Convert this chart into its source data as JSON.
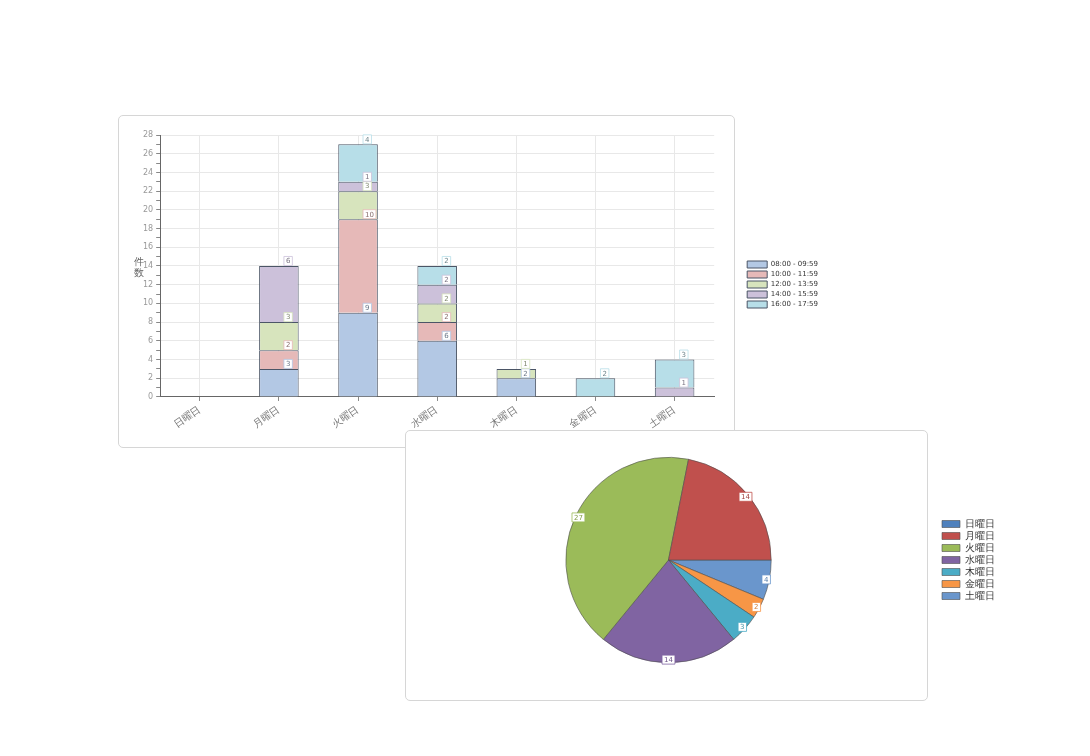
{
  "chart_data": [
    {
      "type": "bar",
      "ylabel": "件数",
      "categories": [
        "日曜日",
        "月曜日",
        "火曜日",
        "水曜日",
        "木曜日",
        "金曜日",
        "土曜日"
      ],
      "series": [
        {
          "name": "08:00 - 09:59",
          "color": "#b3c8e4",
          "values": [
            0,
            3,
            9,
            6,
            2,
            0,
            0
          ],
          "value_labels": [
            null,
            "3",
            "9",
            "6",
            "2",
            null,
            null
          ]
        },
        {
          "name": "10:00 - 11:59",
          "color": "#e6b9b8",
          "values": [
            0,
            2,
            10,
            2,
            0,
            0,
            0
          ],
          "value_labels": [
            null,
            "2",
            "10",
            "2",
            null,
            null,
            null
          ]
        },
        {
          "name": "12:00 - 13:59",
          "color": "#d7e4bd",
          "values": [
            0,
            3,
            3,
            2,
            1,
            0,
            0
          ],
          "value_labels": [
            null,
            "3",
            "3",
            "2",
            "1",
            null,
            null
          ]
        },
        {
          "name": "14:00 - 15:59",
          "color": "#ccc1da",
          "values": [
            0,
            6,
            1,
            2,
            0,
            0,
            1
          ],
          "value_labels": [
            null,
            "6",
            "1",
            "2",
            null,
            null,
            "1"
          ]
        },
        {
          "name": "16:00 - 17:59",
          "color": "#b7dee8",
          "values": [
            0,
            0,
            4,
            2,
            0,
            2,
            3
          ],
          "value_labels": [
            null,
            null,
            "4",
            "2",
            null,
            "2",
            "3"
          ]
        }
      ],
      "stacked": true,
      "ylim": [
        0,
        28
      ],
      "yticks": [
        0,
        {
          "value": 1,
          "label": null
        },
        2,
        {
          "value": 3,
          "label": null
        },
        4,
        {
          "value": 5,
          "label": null
        },
        6,
        {
          "value": 7,
          "label": null
        },
        8,
        {
          "value": 9,
          "label": null
        },
        10,
        {
          "value": 11,
          "label": null
        },
        12,
        {
          "value": 13,
          "label": null
        },
        14,
        {
          "value": 15,
          "label": null
        },
        16,
        {
          "value": 17,
          "label": null
        },
        18,
        {
          "value": 19,
          "label": null
        },
        20,
        {
          "value": 21,
          "label": null
        },
        22,
        {
          "value": 23,
          "label": null
        },
        24,
        {
          "value": 25,
          "label": null
        },
        26,
        {
          "value": 27,
          "label": null
        },
        28
      ],
      "grid": true,
      "legend": "right"
    },
    {
      "type": "pie",
      "categories": [
        "日曜日",
        "月曜日",
        "火曜日",
        "水曜日",
        "木曜日",
        "金曜日",
        "土曜日"
      ],
      "values": [
        0,
        14,
        27,
        14,
        3,
        2,
        4
      ],
      "colors": [
        "#4f81bd",
        "#c0504d",
        "#9bbb59",
        "#8064a2",
        "#4bacc6",
        "#f79646",
        "#6a96cc"
      ],
      "value_labels": [
        null,
        "14",
        "27",
        "14",
        "3",
        "2",
        "4"
      ],
      "legend": "right"
    }
  ]
}
